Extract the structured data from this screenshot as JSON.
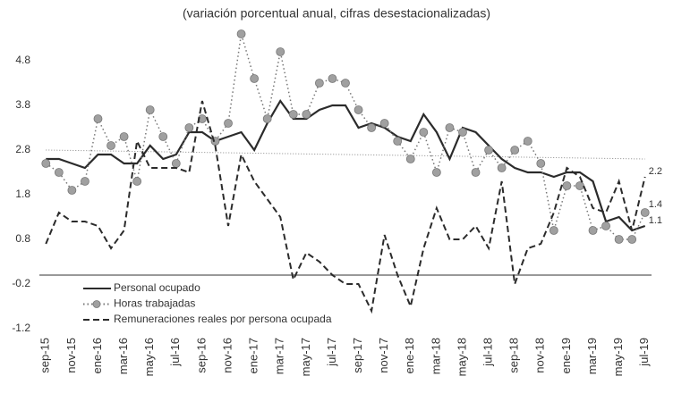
{
  "chart_data": {
    "type": "line",
    "title": "(variación porcentual anual, cifras desestacionalizadas)",
    "categories": [
      "sep-15",
      null,
      "nov-15",
      null,
      "ene-16",
      null,
      "mar-16",
      null,
      "may-16",
      null,
      "jul-16",
      null,
      "sep-16",
      null,
      "nov-16",
      null,
      "ene-17",
      null,
      "mar-17",
      null,
      "may-17",
      null,
      "jul-17",
      null,
      "sep-17",
      null,
      "nov-17",
      null,
      "ene-18",
      null,
      "mar-18",
      null,
      "may-18",
      null,
      "jul-18",
      null,
      "sep-18",
      null,
      "nov-18",
      null,
      "ene-19",
      null,
      "mar-19",
      null,
      "may-19",
      null,
      "jul-19"
    ],
    "series": [
      {
        "name": "Personal ocupado",
        "color": "#2b2b2b",
        "style": "solid",
        "values": [
          2.6,
          2.6,
          2.5,
          2.4,
          2.7,
          2.7,
          2.5,
          2.5,
          2.9,
          2.6,
          2.7,
          3.2,
          3.2,
          3.0,
          3.1,
          3.2,
          2.8,
          3.4,
          3.9,
          3.5,
          3.5,
          3.7,
          3.8,
          3.8,
          3.3,
          3.4,
          3.3,
          3.1,
          3.0,
          3.6,
          3.2,
          2.6,
          3.3,
          3.2,
          2.9,
          2.6,
          2.4,
          2.3,
          2.3,
          2.2,
          2.3,
          2.3,
          2.1,
          1.2,
          1.3,
          1.0,
          1.1
        ]
      },
      {
        "name": "Horas trabajadas",
        "color": "#777777",
        "style": "dotted",
        "marker": "#a0a0a0",
        "values": [
          2.5,
          2.3,
          1.9,
          2.1,
          3.5,
          2.9,
          3.1,
          2.1,
          3.7,
          3.1,
          2.5,
          3.3,
          3.5,
          3.0,
          3.4,
          5.4,
          4.4,
          3.5,
          5.0,
          3.6,
          3.6,
          4.3,
          4.4,
          4.3,
          3.7,
          3.3,
          3.4,
          3.0,
          2.6,
          3.2,
          2.3,
          3.3,
          3.2,
          2.3,
          2.8,
          2.4,
          2.8,
          3.0,
          2.5,
          1.0,
          2.0,
          2.0,
          1.0,
          1.1,
          0.8,
          0.8,
          1.4
        ]
      },
      {
        "name": "Remuneraciones reales por persona ocupada",
        "color": "#2b2b2b",
        "style": "dashed",
        "values": [
          0.7,
          1.4,
          1.2,
          1.2,
          1.1,
          0.6,
          1.0,
          3.0,
          2.4,
          2.4,
          2.4,
          2.3,
          3.9,
          2.9,
          1.1,
          2.7,
          2.1,
          1.7,
          1.3,
          -0.1,
          0.5,
          0.3,
          0.0,
          -0.2,
          -0.2,
          -0.8,
          0.9,
          0.0,
          -0.7,
          0.6,
          1.5,
          0.8,
          0.8,
          1.1,
          0.6,
          2.1,
          -0.2,
          0.6,
          0.7,
          1.4,
          2.4,
          2.2,
          1.5,
          1.4,
          2.1,
          1.0,
          2.2
        ]
      }
    ],
    "end_labels": [
      {
        "series": 0,
        "label": "1.1"
      },
      {
        "series": 1,
        "label": "1.4"
      },
      {
        "series": 2,
        "label": "2.2"
      }
    ],
    "trendline": {
      "color": "#888888",
      "values": [
        2.8,
        2.6
      ]
    },
    "reference_line": {
      "value": 0,
      "color": "#999999"
    },
    "ylim": [
      -1.2,
      5.46
    ],
    "yticks": [
      -1.2,
      -0.2,
      0.8,
      1.8,
      2.8,
      3.8,
      4.8
    ],
    "grid": false,
    "legend": "lower-left"
  }
}
